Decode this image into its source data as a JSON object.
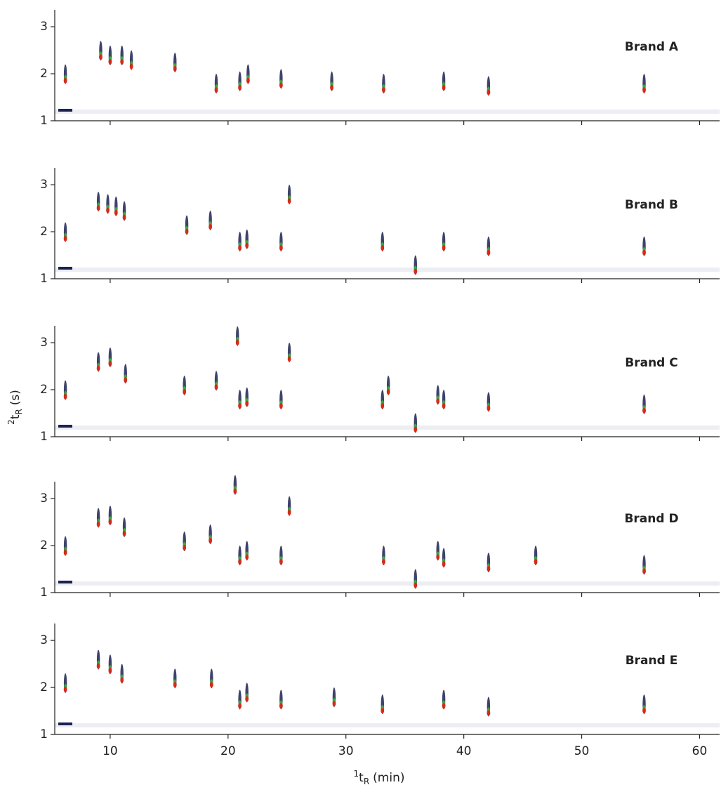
{
  "chart_data": [
    {
      "type": "scatter",
      "label": "Brand A",
      "xlim": [
        5.3,
        61.7
      ],
      "ylim": [
        1,
        3.36
      ],
      "xticks": [
        10,
        20,
        30,
        40,
        50,
        60
      ],
      "yticks": [
        1,
        2,
        3
      ],
      "xtick_labels": false,
      "x": [
        6.2,
        9.2,
        10,
        11,
        11.8,
        15.5,
        19,
        21,
        21.7,
        24.5,
        28.8,
        33.2,
        38.3,
        42.1,
        55.3
      ],
      "values": [
        1.9,
        2.4,
        2.3,
        2.3,
        2.2,
        2.15,
        1.7,
        1.75,
        1.9,
        1.8,
        1.75,
        1.7,
        1.75,
        1.65,
        1.7
      ]
    },
    {
      "type": "scatter",
      "label": "Brand B",
      "xlim": [
        5.3,
        61.7
      ],
      "ylim": [
        1,
        3.36
      ],
      "xticks": [
        10,
        20,
        30,
        40,
        50,
        60
      ],
      "yticks": [
        1,
        2,
        3
      ],
      "xtick_labels": false,
      "x": [
        6.2,
        9,
        9.8,
        10.5,
        11.2,
        16.5,
        18.5,
        21,
        21.6,
        24.5,
        25.2,
        33.1,
        35.9,
        38.3,
        42.1,
        55.3
      ],
      "values": [
        1.9,
        2.55,
        2.5,
        2.45,
        2.35,
        2.05,
        2.15,
        1.7,
        1.75,
        1.7,
        2.7,
        1.7,
        1.2,
        1.7,
        1.6,
        1.6
      ]
    },
    {
      "type": "scatter",
      "label": "Brand C",
      "xlim": [
        5.3,
        61.7
      ],
      "ylim": [
        1,
        3.36
      ],
      "xticks": [
        10,
        20,
        30,
        40,
        50,
        60
      ],
      "yticks": [
        1,
        2,
        3
      ],
      "xtick_labels": false,
      "y_label": {
        "sup": "2",
        "main": "t",
        "sub": "R",
        "unit": "(s)"
      },
      "x": [
        6.2,
        9,
        10,
        11.3,
        16.3,
        19,
        20.8,
        21,
        21.6,
        24.5,
        25.2,
        33.1,
        33.6,
        35.9,
        37.8,
        38.3,
        42.1,
        55.3
      ],
      "values": [
        1.9,
        2.5,
        2.6,
        2.25,
        2,
        2.1,
        3.05,
        1.7,
        1.75,
        1.7,
        2.7,
        1.7,
        2,
        1.2,
        1.8,
        1.7,
        1.65,
        1.6
      ]
    },
    {
      "type": "scatter",
      "label": "Brand D",
      "xlim": [
        5.3,
        61.7
      ],
      "ylim": [
        1,
        3.36
      ],
      "xticks": [
        10,
        20,
        30,
        40,
        50,
        60
      ],
      "yticks": [
        1,
        2,
        3
      ],
      "xtick_labels": false,
      "x": [
        6.2,
        9,
        10,
        11.2,
        16.3,
        18.5,
        20.6,
        21,
        21.6,
        24.5,
        25.2,
        33.2,
        35.9,
        37.8,
        38.3,
        42.1,
        46.1,
        55.3
      ],
      "values": [
        1.9,
        2.5,
        2.55,
        2.3,
        2,
        2.15,
        3.2,
        1.7,
        1.8,
        1.7,
        2.75,
        1.7,
        1.2,
        1.8,
        1.65,
        1.55,
        1.7,
        1.5
      ]
    },
    {
      "type": "scatter",
      "label": "Brand E",
      "xlim": [
        5.3,
        61.7
      ],
      "ylim": [
        1,
        3.36
      ],
      "xticks": [
        10,
        20,
        30,
        40,
        50,
        60
      ],
      "yticks": [
        1,
        2,
        3
      ],
      "xtick_labels": true,
      "x_label": {
        "sup": "1",
        "main": "t",
        "sub": "R",
        "unit": "(min)"
      },
      "x": [
        6.2,
        9,
        10,
        11,
        15.5,
        18.6,
        21,
        21.6,
        24.5,
        29,
        33.1,
        38.3,
        42.1,
        55.3
      ],
      "values": [
        2,
        2.5,
        2.4,
        2.2,
        2.1,
        2.1,
        1.65,
        1.8,
        1.65,
        1.7,
        1.55,
        1.65,
        1.5,
        1.55
      ]
    }
  ]
}
